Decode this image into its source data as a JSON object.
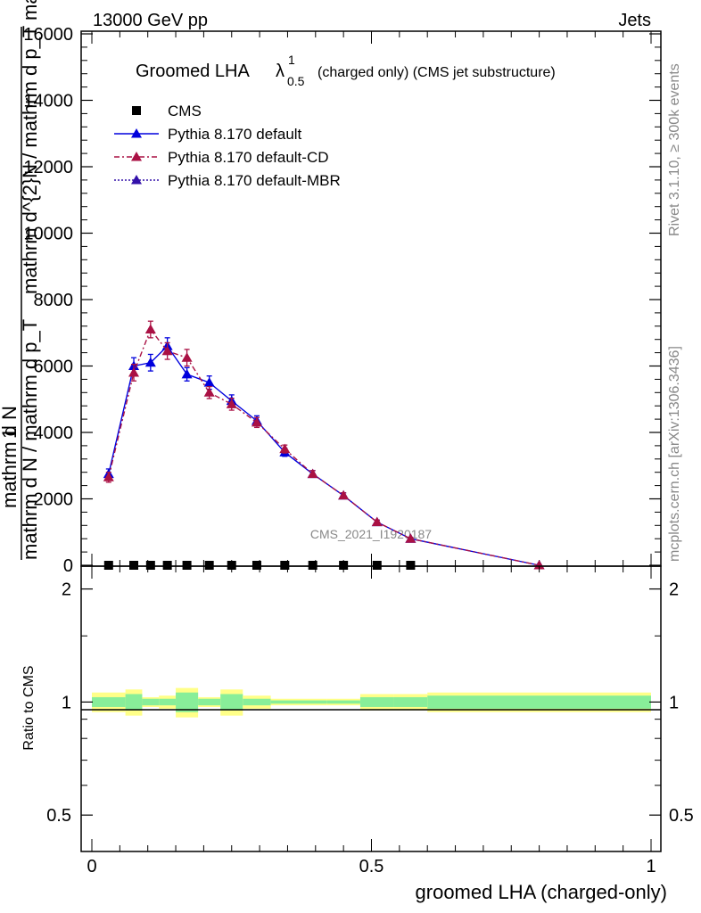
{
  "header": {
    "left": "13000 GeV pp",
    "right": "Jets"
  },
  "side_labels": {
    "rivet": "Rivet 3.1.10, ≥ 300k events",
    "mcplots": "mcplots.cern.ch [arXiv:1306.3436]"
  },
  "watermark": "CMS_2021_I1920187",
  "title": {
    "main": "Groomed LHA ",
    "lambda": "λ",
    "sup": "1",
    "sub": "0.5",
    "rest": "(charged only) (CMS jet substructure)"
  },
  "ylabel_main": {
    "one": "1",
    "numer": "mathrm d N",
    "numer_overlay": "mathrm d",
    "denom": "mathrm d N / mathrm d p_T",
    "rhs": "mathrm d^{2}N / mathrm d p_T mathrm d lambda"
  },
  "ratio_ylabel": "Ratio to CMS",
  "xlabel": "groomed LHA (charged-only)",
  "legend": [
    {
      "label": "CMS",
      "color": "#000000",
      "marker": "square",
      "line": "none"
    },
    {
      "label": "Pythia 8.170 default",
      "color": "#0000dd",
      "marker": "triangle",
      "line": "solid"
    },
    {
      "label": "Pythia 8.170 default-CD",
      "color": "#aa1144",
      "marker": "triangle",
      "line": "dashdot"
    },
    {
      "label": "Pythia 8.170 default-MBR",
      "color": "#3311aa",
      "marker": "triangle",
      "line": "dotted"
    }
  ],
  "chart_data": {
    "type": "line",
    "main": {
      "xlim": [
        0,
        1
      ],
      "ylim": [
        0,
        16000
      ],
      "yticks": [
        0,
        2000,
        4000,
        6000,
        8000,
        10000,
        12000,
        14000,
        16000
      ],
      "yticklabels": [
        "0",
        "2000",
        "4000",
        "6000",
        "8000",
        "10000",
        "12000",
        "14000",
        "16000"
      ],
      "series": [
        {
          "name": "CMS",
          "x": [
            0.03,
            0.075,
            0.105,
            0.135,
            0.17,
            0.21,
            0.25,
            0.295,
            0.345,
            0.395,
            0.45,
            0.51,
            0.57
          ],
          "y": [
            0,
            0,
            0,
            0,
            0,
            0,
            0,
            0,
            0,
            0,
            0,
            0,
            0
          ]
        },
        {
          "name": "Pythia 8.170 default",
          "x": [
            0.03,
            0.075,
            0.105,
            0.135,
            0.17,
            0.21,
            0.25,
            0.295,
            0.345,
            0.395,
            0.45,
            0.51,
            0.57,
            0.8
          ],
          "y": [
            2750,
            6000,
            6100,
            6600,
            5750,
            5500,
            4950,
            4350,
            3400,
            2750,
            2100,
            1300,
            800,
            0
          ],
          "err": [
            150,
            250,
            250,
            250,
            200,
            200,
            180,
            150,
            120,
            100,
            80,
            60,
            40,
            10
          ]
        },
        {
          "name": "Pythia 8.170 default-CD",
          "x": [
            0.03,
            0.075,
            0.105,
            0.135,
            0.17,
            0.21,
            0.25,
            0.295,
            0.345,
            0.395,
            0.45,
            0.51,
            0.57,
            0.8
          ],
          "y": [
            2650,
            5800,
            7100,
            6450,
            6250,
            5200,
            4850,
            4300,
            3500,
            2750,
            2100,
            1300,
            800,
            0
          ],
          "err": [
            150,
            250,
            250,
            250,
            250,
            180,
            180,
            150,
            120,
            100,
            80,
            60,
            40,
            10
          ]
        }
      ]
    },
    "ratio": {
      "ylim": [
        0.4,
        2.3
      ],
      "yticks": [
        0.5,
        1,
        2
      ],
      "yticklabels": [
        "0.5",
        "1",
        "2"
      ],
      "xticks": [
        0,
        0.5,
        1
      ],
      "xticklabels": [
        "0",
        "0.5",
        "1"
      ],
      "bins": [
        0,
        0.06,
        0.09,
        0.12,
        0.15,
        0.19,
        0.23,
        0.27,
        0.32,
        0.37,
        0.42,
        0.48,
        0.54,
        0.6,
        1.0
      ],
      "band_outer": [
        0.06,
        0.08,
        0.03,
        0.04,
        0.09,
        0.03,
        0.08,
        0.04,
        0.02,
        0.02,
        0.02,
        0.05,
        0.05,
        0.06,
        0.08
      ],
      "band_inner": [
        0.03,
        0.05,
        0.02,
        0.02,
        0.06,
        0.02,
        0.05,
        0.02,
        0.01,
        0.01,
        0.01,
        0.03,
        0.03,
        0.04,
        0.05
      ]
    }
  }
}
